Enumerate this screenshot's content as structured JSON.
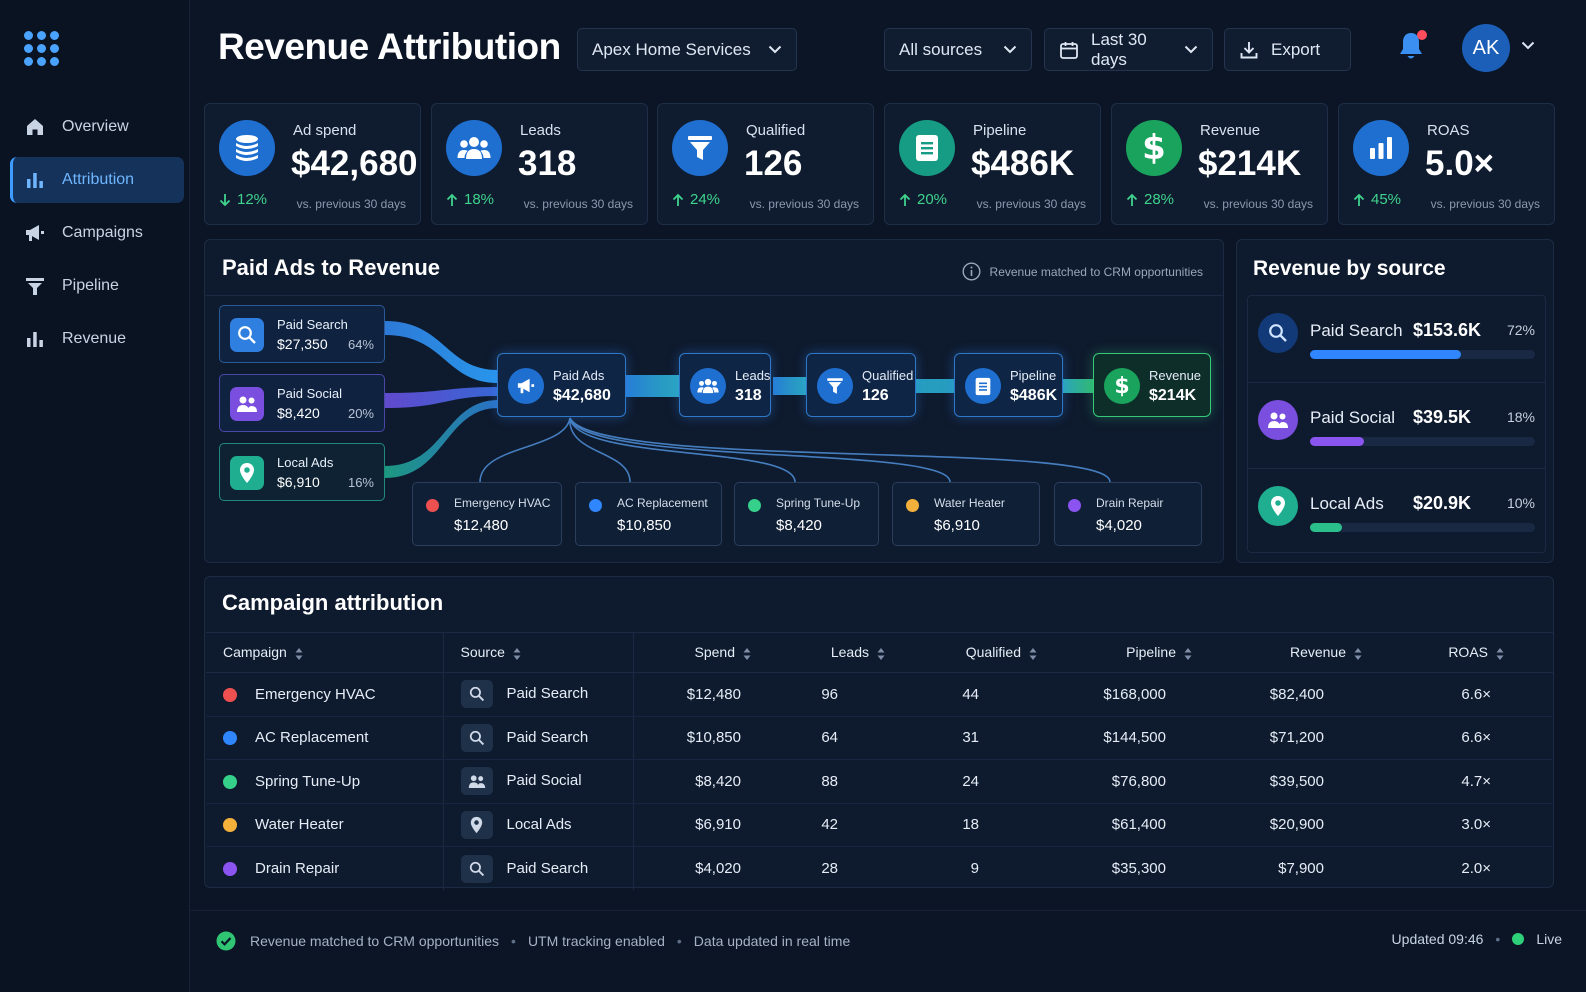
{
  "sidebar": {
    "items": [
      {
        "label": "Overview",
        "icon": "home-icon"
      },
      {
        "label": "Attribution",
        "icon": "bar-chart-icon",
        "active": true
      },
      {
        "label": "Campaigns",
        "icon": "megaphone-icon"
      },
      {
        "label": "Pipeline",
        "icon": "funnel-icon"
      },
      {
        "label": "Revenue",
        "icon": "bar-chart-icon"
      }
    ]
  },
  "header": {
    "title": "Revenue Attribution",
    "account_select": "Apex Home Services",
    "source_filter": "All sources",
    "date_filter": "Last 30 days",
    "export_label": "Export",
    "avatar_initials": "AK"
  },
  "kpis": [
    {
      "label": "Ad spend",
      "value": "$42,680",
      "delta": "12%",
      "direction": "down",
      "comparison": "vs. previous 30 days",
      "icon": "coins-icon",
      "color": "#1f6fd1"
    },
    {
      "label": "Leads",
      "value": "318",
      "delta": "18%",
      "direction": "up",
      "comparison": "vs. previous 30 days",
      "icon": "users-icon",
      "color": "#1f6fd1"
    },
    {
      "label": "Qualified",
      "value": "126",
      "delta": "24%",
      "direction": "up",
      "comparison": "vs. previous 30 days",
      "icon": "funnel-icon",
      "color": "#1f6fd1"
    },
    {
      "label": "Pipeline",
      "value": "$486K",
      "delta": "20%",
      "direction": "up",
      "comparison": "vs. previous 30 days",
      "icon": "document-icon",
      "color": "#169c84"
    },
    {
      "label": "Revenue",
      "value": "$214K",
      "delta": "28%",
      "direction": "up",
      "comparison": "vs. previous 30 days",
      "icon": "dollar-icon",
      "color": "#1aa35c"
    },
    {
      "label": "ROAS",
      "value": "5.0×",
      "delta": "45%",
      "direction": "up",
      "comparison": "vs. previous 30 days",
      "icon": "bar-chart-icon",
      "color": "#1f6fd1"
    }
  ],
  "flow": {
    "title": "Paid Ads to Revenue",
    "note": "Revenue matched to CRM opportunities",
    "sources": [
      {
        "name": "Paid Search",
        "amount": "$27,350",
        "pct": "64%",
        "icon": "search-icon",
        "color": "#2f7fe0"
      },
      {
        "name": "Paid Social",
        "amount": "$8,420",
        "pct": "20%",
        "icon": "users-icon",
        "color": "#7a4fe0"
      },
      {
        "name": "Local Ads",
        "amount": "$6,910",
        "pct": "16%",
        "icon": "location-pin-icon",
        "color": "#1fae8f"
      }
    ],
    "stages": [
      {
        "name": "Paid Ads",
        "value": "$42,680",
        "icon": "megaphone-icon"
      },
      {
        "name": "Leads",
        "value": "318",
        "icon": "users-icon"
      },
      {
        "name": "Qualified",
        "value": "126",
        "icon": "funnel-icon"
      },
      {
        "name": "Pipeline",
        "value": "$486K",
        "icon": "document-icon"
      },
      {
        "name": "Revenue",
        "value": "$214K",
        "icon": "dollar-icon"
      }
    ],
    "campaigns": [
      {
        "name": "Emergency HVAC",
        "value": "$12,480",
        "color": "#ee4f4f"
      },
      {
        "name": "AC Replacement",
        "value": "$10,850",
        "color": "#2f86ff"
      },
      {
        "name": "Spring Tune-Up",
        "value": "$8,420",
        "color": "#35d08a"
      },
      {
        "name": "Water Heater",
        "value": "$6,910",
        "color": "#f3b13b"
      },
      {
        "name": "Drain Repair",
        "value": "$4,020",
        "color": "#8b54f0"
      }
    ]
  },
  "revenue_by_source": {
    "title": "Revenue by source",
    "items": [
      {
        "name": "Paid Search",
        "value": "$153.6K",
        "pct": "72%",
        "fill": 0.67,
        "icon": "search-icon",
        "color": "#2f86ff"
      },
      {
        "name": "Paid Social",
        "value": "$39.5K",
        "pct": "18%",
        "fill": 0.24,
        "icon": "users-icon",
        "color": "#8a55ef"
      },
      {
        "name": "Local Ads",
        "value": "$20.9K",
        "pct": "10%",
        "fill": 0.14,
        "icon": "location-pin-icon",
        "color": "#2bbf8c"
      }
    ]
  },
  "table": {
    "title": "Campaign attribution",
    "columns": [
      "Campaign",
      "Source",
      "Spend",
      "Leads",
      "Qualified",
      "Pipeline",
      "Revenue",
      "ROAS"
    ],
    "rows": [
      {
        "campaign": "Emergency HVAC",
        "color": "#ee4f4f",
        "source": "Paid Search",
        "source_icon": "search-icon",
        "spend": "$12,480",
        "leads": "96",
        "qualified": "44",
        "pipeline": "$168,000",
        "revenue": "$82,400",
        "roas": "6.6×"
      },
      {
        "campaign": "AC Replacement",
        "color": "#2f86ff",
        "source": "Paid Search",
        "source_icon": "search-icon",
        "spend": "$10,850",
        "leads": "64",
        "qualified": "31",
        "pipeline": "$144,500",
        "revenue": "$71,200",
        "roas": "6.6×"
      },
      {
        "campaign": "Spring Tune-Up",
        "color": "#35d08a",
        "source": "Paid Social",
        "source_icon": "users-icon",
        "spend": "$8,420",
        "leads": "88",
        "qualified": "24",
        "pipeline": "$76,800",
        "revenue": "$39,500",
        "roas": "4.7×"
      },
      {
        "campaign": "Water Heater",
        "color": "#f3b13b",
        "source": "Local Ads",
        "source_icon": "location-pin-icon",
        "spend": "$6,910",
        "leads": "42",
        "qualified": "18",
        "pipeline": "$61,400",
        "revenue": "$20,900",
        "roas": "3.0×"
      },
      {
        "campaign": "Drain Repair",
        "color": "#8b54f0",
        "source": "Paid Search",
        "source_icon": "search-icon",
        "spend": "$4,020",
        "leads": "28",
        "qualified": "9",
        "pipeline": "$35,300",
        "revenue": "$7,900",
        "roas": "2.0×"
      }
    ]
  },
  "footer": {
    "items": [
      "Revenue matched to CRM opportunities",
      "UTM tracking enabled",
      "Data updated in real time"
    ],
    "updated": "Updated 09:46",
    "live": "Live"
  }
}
